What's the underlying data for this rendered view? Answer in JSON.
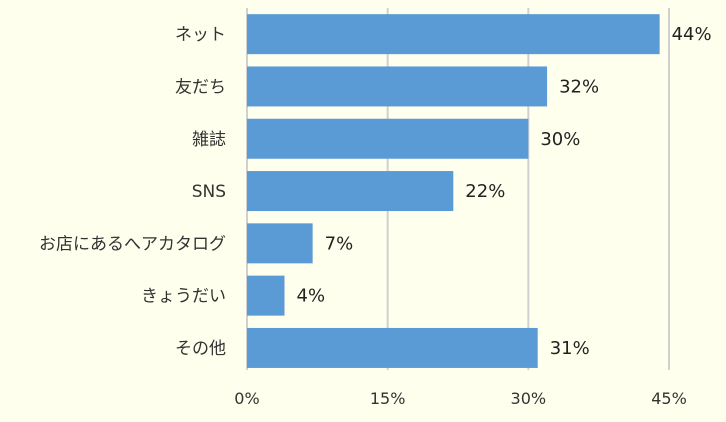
{
  "chart_data": {
    "type": "bar",
    "orientation": "horizontal",
    "categories": [
      "ネット",
      "友だち",
      "雑誌",
      "SNS",
      "お店にあるへアカタログ",
      "きょうだい",
      "その他"
    ],
    "values": [
      44,
      32,
      30,
      22,
      7,
      4,
      31
    ],
    "value_labels": [
      "44%",
      "32%",
      "30%",
      "22%",
      "7%",
      "4%",
      "31%"
    ],
    "title": "",
    "xlabel": "",
    "ylabel": "",
    "xlim": [
      0,
      45
    ],
    "xticks": [
      0,
      15,
      30,
      45
    ],
    "xtick_labels": [
      "0%",
      "15%",
      "30%",
      "45%"
    ],
    "grid": true,
    "bar_color": "#5B9BD5",
    "grid_color": "#D0D0D0",
    "background": "#FFFFEE"
  }
}
